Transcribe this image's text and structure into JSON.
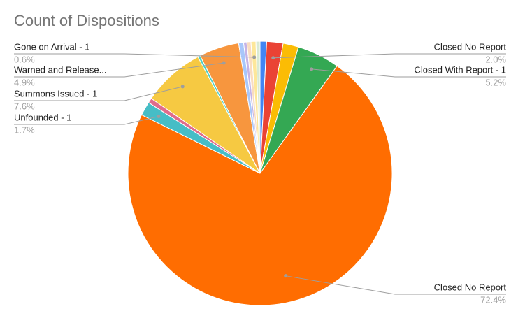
{
  "chart_data": {
    "type": "pie",
    "title": "Count of Dispositions",
    "categories": [
      null,
      "Closed No Report",
      null,
      "Closed With Report - 1",
      "Closed No Report",
      "Unfounded - 1",
      null,
      "Summons Issued - 1",
      null,
      "Warned and Release...",
      null,
      null,
      null,
      "Gone on Arrival - 1",
      null
    ],
    "values": [
      0.8,
      2.0,
      1.9,
      5.2,
      72.4,
      1.7,
      0.6,
      7.6,
      0.3,
      4.9,
      0.6,
      0.4,
      0.5,
      0.6,
      0.5
    ],
    "value_labels": [
      null,
      "2.0%",
      null,
      "5.2%",
      "72.4%",
      "1.7%",
      null,
      "7.6%",
      null,
      "4.9%",
      null,
      null,
      null,
      "0.6%",
      null
    ],
    "colors": [
      "#4285f4",
      "#ea4335",
      "#fbbc04",
      "#34a853",
      "#ff6d01",
      "#46bdc6",
      "#e06c8c",
      "#f6c942",
      "#4dd0c4",
      "#f7963e",
      "#a8c7fa",
      "#c5b3e6",
      "#f9dcc0",
      "#fde79a",
      "#d9ead3"
    ]
  }
}
